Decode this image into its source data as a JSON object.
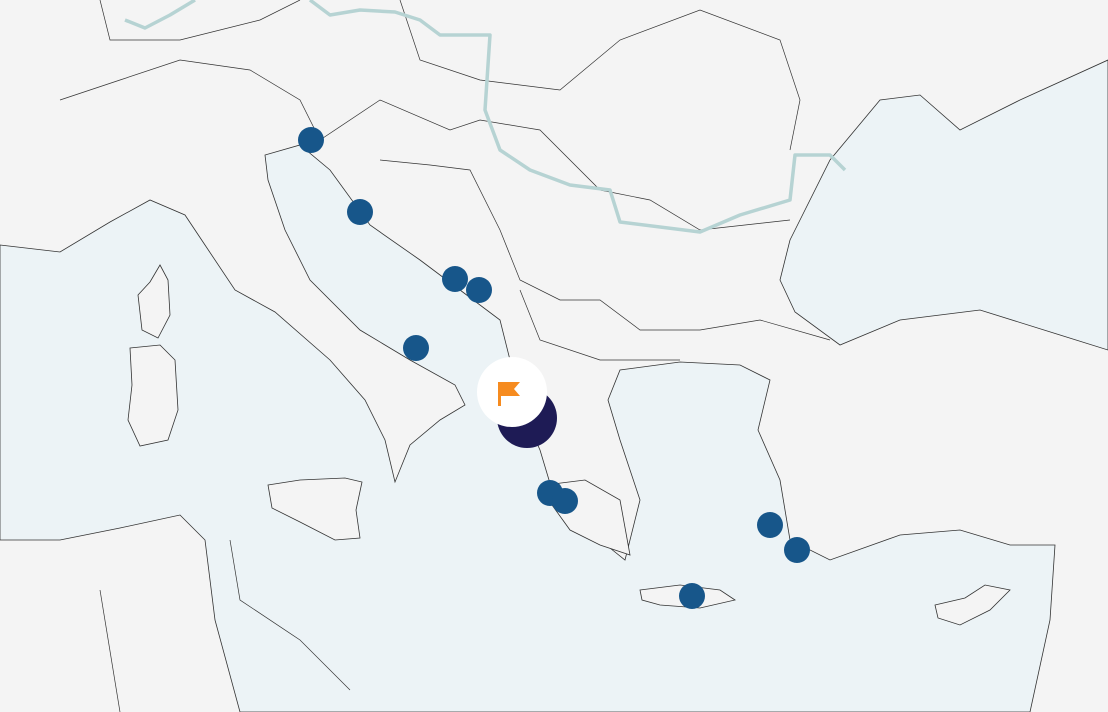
{
  "map": {
    "colors": {
      "land": "#f4f4f4",
      "sea": "#ecf3f6",
      "river": "#b6d3d3",
      "marker": "#17568a",
      "cluster": "#1e1b55",
      "flag": "#f68b1f",
      "highlight": "#ffffff"
    },
    "markers": [
      {
        "type": "location"
      },
      {
        "type": "location"
      },
      {
        "type": "location"
      },
      {
        "type": "location"
      },
      {
        "type": "location"
      },
      {
        "type": "location"
      },
      {
        "type": "location"
      },
      {
        "type": "location"
      },
      {
        "type": "location"
      },
      {
        "type": "location"
      }
    ],
    "selected": {
      "type": "cluster",
      "icon": "flag-icon"
    }
  }
}
